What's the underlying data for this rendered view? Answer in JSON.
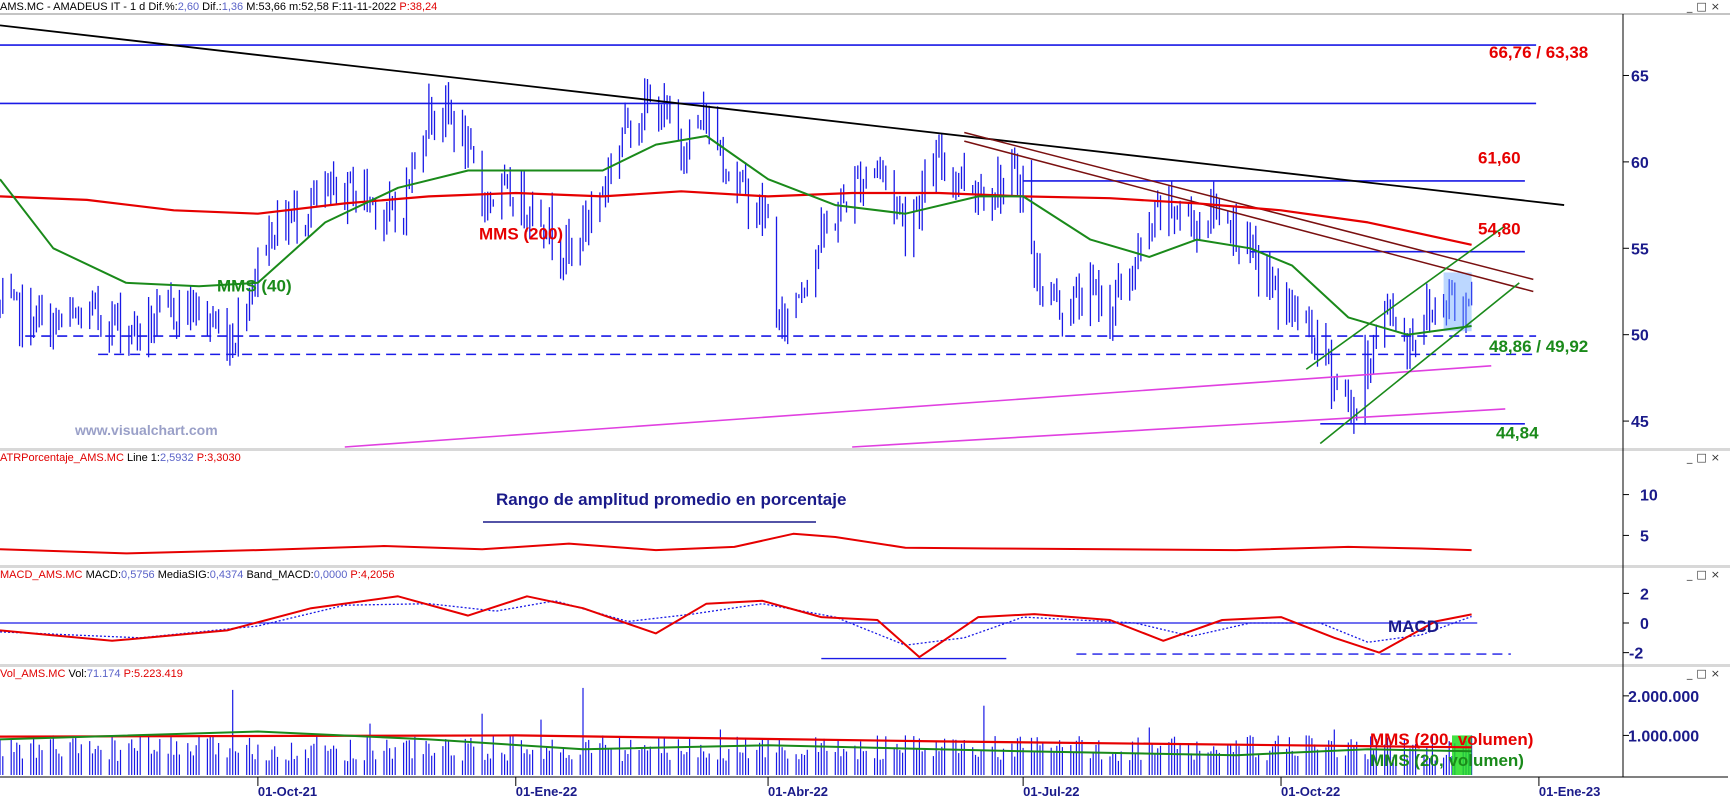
{
  "header": {
    "main": {
      "symbol": "AMS.MC - AMADEUS IT -",
      "period": "1 d",
      "dif_pct_label": "Dif.%:",
      "dif_pct": "2,60",
      "dif_label": "Dif.:",
      "dif": "1,36",
      "max_label": "M:",
      "max": "53,66",
      "min_label": "m:",
      "min": "52,58",
      "date_label": "F:",
      "date": "11-11-2022",
      "p_label": "P:",
      "p": "38,24"
    },
    "atr": {
      "name": "ATRPorcentaje_AMS.MC",
      "line_label": "Line 1:",
      "line": "2,5932",
      "p_label": "P:",
      "p": "3,3030"
    },
    "macd": {
      "name": "MACD_AMS.MC",
      "macd_label": "MACD:",
      "macd": "0,5756",
      "sig_label": "MediaSIG:",
      "sig": "0,4374",
      "band_label": "Band_MACD:",
      "band": "0,0000",
      "p_label": "P:",
      "p": "4,2056"
    },
    "vol": {
      "name": "Vol_AMS.MC",
      "vol_label": "Vol:",
      "vol": "71.174",
      "p_label": "P:",
      "p": "5.223.419"
    }
  },
  "window_buttons": "_□×",
  "colors": {
    "candles": "#1a1ae6",
    "mms200": "#e60000",
    "mms40": "#1a8a1a",
    "trend_black": "#000000",
    "trend_brown": "#7a1010",
    "levels": "#1a1ae6",
    "channel": "#1a8a1a",
    "support_magenta": "#e040e0",
    "atr": "#e60000",
    "macd": "#e60000",
    "signal": "#1a1ae6",
    "volume": "#1a1ae6",
    "label_red": "#e60000",
    "label_green": "#1a8a1a",
    "label_blue": "#1a1a8a"
  },
  "chart_data": [
    {
      "type": "candlestick",
      "panel": "price",
      "title": "AMS.MC - AMADEUS IT",
      "ylim": [
        43.5,
        68.5
      ],
      "y_ticks": [
        "45",
        "50",
        "55",
        "60",
        "65"
      ],
      "y_tick_values": [
        45,
        50,
        55,
        60,
        65
      ],
      "x_ticks": [
        "01-Oct-21",
        "01-Ene-22",
        "01-Abr-22",
        "01-Jul-22",
        "01-Oct-22",
        "01-Ene-23"
      ],
      "x_range": [
        "2021-07-01",
        "2023-01-31"
      ],
      "close_series": [
        [
          "2021-07-01",
          51.5
        ],
        [
          "2021-07-20",
          50.5
        ],
        [
          "2021-08-05",
          51.2
        ],
        [
          "2021-08-20",
          50.2
        ],
        [
          "2021-09-05",
          51.8
        ],
        [
          "2021-09-22",
          49.8
        ],
        [
          "2021-10-05",
          56.0
        ],
        [
          "2021-10-20",
          57.5
        ],
        [
          "2021-11-05",
          58.5
        ],
        [
          "2021-11-20",
          56.5
        ],
        [
          "2021-12-01",
          63.0
        ],
        [
          "2021-12-10",
          62.5
        ],
        [
          "2021-12-20",
          58.0
        ],
        [
          "2022-01-01",
          58.0
        ],
        [
          "2022-01-10",
          57.0
        ],
        [
          "2022-01-20",
          54.5
        ],
        [
          "2022-02-01",
          58.5
        ],
        [
          "2022-02-10",
          62.5
        ],
        [
          "2022-02-20",
          63.5
        ],
        [
          "2022-03-01",
          61.0
        ],
        [
          "2022-03-10",
          62.5
        ],
        [
          "2022-03-20",
          59.0
        ],
        [
          "2022-04-01",
          56.5
        ],
        [
          "2022-04-05",
          50.0
        ],
        [
          "2022-04-10",
          52.0
        ],
        [
          "2022-04-20",
          55.5
        ],
        [
          "2022-05-01",
          58.5
        ],
        [
          "2022-05-10",
          60.0
        ],
        [
          "2022-05-20",
          56.5
        ],
        [
          "2022-06-01",
          60.0
        ],
        [
          "2022-06-15",
          58.5
        ],
        [
          "2022-07-01",
          59.0
        ],
        [
          "2022-07-05",
          53.5
        ],
        [
          "2022-07-15",
          51.5
        ],
        [
          "2022-07-25",
          52.5
        ],
        [
          "2022-08-01",
          51.5
        ],
        [
          "2022-08-10",
          54.0
        ],
        [
          "2022-08-20",
          57.5
        ],
        [
          "2022-09-01",
          56.5
        ],
        [
          "2022-09-10",
          57.5
        ],
        [
          "2022-09-20",
          54.5
        ],
        [
          "2022-10-01",
          52.0
        ],
        [
          "2022-10-10",
          50.5
        ],
        [
          "2022-10-20",
          47.5
        ],
        [
          "2022-10-27",
          45.5
        ],
        [
          "2022-11-01",
          48.5
        ],
        [
          "2022-11-05",
          50.5
        ],
        [
          "2022-11-09",
          51.5
        ],
        [
          "2022-11-15",
          49.5
        ],
        [
          "2022-11-20",
          51.0
        ],
        [
          "2022-11-25",
          51.5
        ],
        [
          "2022-12-01",
          52.5
        ],
        [
          "2022-12-05",
          51.0
        ],
        [
          "2022-12-08",
          53.5
        ]
      ],
      "mms200": [
        [
          "2021-07-01",
          58.0
        ],
        [
          "2021-08-01",
          57.8
        ],
        [
          "2021-09-01",
          57.2
        ],
        [
          "2021-10-01",
          57.0
        ],
        [
          "2021-11-01",
          57.6
        ],
        [
          "2021-12-01",
          58.0
        ],
        [
          "2022-01-01",
          58.2
        ],
        [
          "2022-02-01",
          58.0
        ],
        [
          "2022-03-01",
          58.3
        ],
        [
          "2022-04-01",
          58.0
        ],
        [
          "2022-05-01",
          58.2
        ],
        [
          "2022-06-01",
          58.2
        ],
        [
          "2022-07-01",
          58.0
        ],
        [
          "2022-08-01",
          57.9
        ],
        [
          "2022-09-01",
          57.6
        ],
        [
          "2022-10-01",
          57.2
        ],
        [
          "2022-11-01",
          56.5
        ],
        [
          "2022-12-08",
          55.2
        ]
      ],
      "mms40": [
        [
          "2021-07-01",
          59.0
        ],
        [
          "2021-07-20",
          55.0
        ],
        [
          "2021-08-15",
          53.0
        ],
        [
          "2021-09-10",
          52.8
        ],
        [
          "2021-10-01",
          53.0
        ],
        [
          "2021-10-25",
          56.5
        ],
        [
          "2021-11-20",
          58.5
        ],
        [
          "2021-12-15",
          59.5
        ],
        [
          "2022-01-10",
          59.5
        ],
        [
          "2022-02-01",
          59.5
        ],
        [
          "2022-02-20",
          61.0
        ],
        [
          "2022-03-10",
          61.5
        ],
        [
          "2022-04-01",
          59.0
        ],
        [
          "2022-04-25",
          57.5
        ],
        [
          "2022-05-20",
          57.0
        ],
        [
          "2022-06-15",
          58.0
        ],
        [
          "2022-07-01",
          58.0
        ],
        [
          "2022-07-25",
          55.5
        ],
        [
          "2022-08-15",
          54.5
        ],
        [
          "2022-09-01",
          55.5
        ],
        [
          "2022-09-20",
          55.0
        ],
        [
          "2022-10-05",
          54.0
        ],
        [
          "2022-10-25",
          51.0
        ],
        [
          "2022-11-15",
          50.0
        ],
        [
          "2022-12-08",
          50.5
        ]
      ],
      "trendlines": [
        {
          "from": [
            "2021-07-01",
            67.9
          ],
          "to": [
            "2023-01-10",
            57.5
          ],
          "color": "trend_black"
        },
        {
          "from": [
            "2022-06-10",
            61.7
          ],
          "to": [
            "2022-12-30",
            53.2
          ],
          "color": "trend_brown"
        },
        {
          "from": [
            "2022-06-10",
            61.2
          ],
          "to": [
            "2022-12-30",
            52.5
          ],
          "color": "trend_brown"
        }
      ],
      "horizontal_levels": [
        {
          "y": 66.76,
          "from": "2021-07-01",
          "to": "2022-12-31",
          "style": "solid"
        },
        {
          "y": 63.38,
          "from": "2021-07-01",
          "to": "2022-12-31",
          "style": "solid"
        },
        {
          "y": 58.9,
          "from": "2022-07-01",
          "to": "2022-12-27",
          "style": "solid"
        },
        {
          "y": 54.8,
          "from": "2022-09-20",
          "to": "2022-12-27",
          "style": "solid"
        },
        {
          "y": 49.92,
          "from": "2021-07-10",
          "to": "2022-12-31",
          "style": "dashed"
        },
        {
          "y": 48.86,
          "from": "2021-08-05",
          "to": "2022-12-31",
          "style": "dashed"
        },
        {
          "y": 44.84,
          "from": "2022-10-15",
          "to": "2022-12-27",
          "style": "solid"
        }
      ],
      "channel_lines": [
        {
          "from": [
            "2022-10-10",
            48.0
          ],
          "to": [
            "2022-12-20",
            56.3
          ]
        },
        {
          "from": [
            "2022-10-15",
            43.7
          ],
          "to": [
            "2022-12-25",
            53.0
          ]
        }
      ],
      "support_lines": [
        {
          "from": [
            "2021-11-01",
            43.5
          ],
          "to": [
            "2022-12-15",
            48.2
          ]
        },
        {
          "from": [
            "2022-05-01",
            43.5
          ],
          "to": [
            "2022-12-20",
            45.7
          ]
        }
      ],
      "annotations": [
        {
          "text": "66,76 / 63,38",
          "color": "label_red"
        },
        {
          "text": "61,60",
          "color": "label_red"
        },
        {
          "text": "54,80",
          "color": "label_red"
        },
        {
          "text": "48,86 / 49,92",
          "color": "label_green"
        },
        {
          "text": "44,84",
          "color": "label_green"
        },
        {
          "text": "MMS (200)",
          "color": "label_red"
        },
        {
          "text": "MMS (40)",
          "color": "label_green"
        },
        {
          "text": "www.visualchart.com",
          "color": "watermark"
        }
      ]
    },
    {
      "type": "line",
      "panel": "atr",
      "ylim": [
        1.5,
        13.5
      ],
      "y_ticks": [
        "5",
        "10"
      ],
      "y_tick_values": [
        5,
        10
      ],
      "series": [
        {
          "values": [
            [
              "2021-07-01",
              3.3
            ],
            [
              "2021-08-15",
              2.8
            ],
            [
              "2021-10-01",
              3.2
            ],
            [
              "2021-11-15",
              3.7
            ],
            [
              "2021-12-20",
              3.3
            ],
            [
              "2022-01-20",
              4.0
            ],
            [
              "2022-02-20",
              3.2
            ],
            [
              "2022-03-20",
              3.6
            ],
            [
              "2022-04-10",
              5.2
            ],
            [
              "2022-04-25",
              4.8
            ],
            [
              "2022-05-20",
              3.5
            ],
            [
              "2022-06-20",
              3.4
            ],
            [
              "2022-08-01",
              3.3
            ],
            [
              "2022-09-15",
              3.2
            ],
            [
              "2022-10-25",
              3.6
            ],
            [
              "2022-11-20",
              3.4
            ],
            [
              "2022-12-08",
              3.2
            ]
          ]
        }
      ],
      "annotations": [
        {
          "text": "Rango de amplitud promedio en porcentaje",
          "color": "label_blue"
        }
      ]
    },
    {
      "type": "line",
      "panel": "macd",
      "ylim": [
        -2.7,
        2.7
      ],
      "y_ticks": [
        "-2",
        "0",
        "2"
      ],
      "y_tick_values": [
        -2,
        0,
        2
      ],
      "series": [
        {
          "values": [
            [
              "2021-07-01",
              -0.5
            ],
            [
              "2021-08-10",
              -1.2
            ],
            [
              "2021-09-20",
              -0.5
            ],
            [
              "2021-10-20",
              1.0
            ],
            [
              "2021-11-20",
              1.8
            ],
            [
              "2021-12-15",
              0.5
            ],
            [
              "2022-01-05",
              1.8
            ],
            [
              "2022-01-25",
              1.0
            ],
            [
              "2022-02-20",
              -0.7
            ],
            [
              "2022-03-10",
              1.3
            ],
            [
              "2022-03-30",
              1.5
            ],
            [
              "2022-04-20",
              0.4
            ],
            [
              "2022-05-10",
              0.2
            ],
            [
              "2022-05-25",
              -2.3
            ],
            [
              "2022-06-15",
              0.4
            ],
            [
              "2022-07-05",
              0.6
            ],
            [
              "2022-08-01",
              0.2
            ],
            [
              "2022-08-20",
              -1.2
            ],
            [
              "2022-09-10",
              0.2
            ],
            [
              "2022-10-01",
              0.4
            ],
            [
              "2022-10-20",
              -1.0
            ],
            [
              "2022-11-05",
              -2.0
            ],
            [
              "2022-11-25",
              0.1
            ],
            [
              "2022-12-08",
              0.58
            ]
          ]
        },
        {
          "values": [
            [
              "2021-07-01",
              -0.6
            ],
            [
              "2021-08-20",
              -1.0
            ],
            [
              "2021-10-01",
              -0.2
            ],
            [
              "2021-11-01",
              1.2
            ],
            [
              "2021-12-01",
              1.3
            ],
            [
              "2021-12-25",
              0.8
            ],
            [
              "2022-01-15",
              1.5
            ],
            [
              "2022-02-10",
              0.1
            ],
            [
              "2022-03-05",
              0.6
            ],
            [
              "2022-03-30",
              1.3
            ],
            [
              "2022-04-25",
              0.4
            ],
            [
              "2022-05-20",
              -1.5
            ],
            [
              "2022-06-10",
              -1.0
            ],
            [
              "2022-07-01",
              0.4
            ],
            [
              "2022-08-10",
              0.0
            ],
            [
              "2022-08-30",
              -0.9
            ],
            [
              "2022-09-20",
              0.0
            ],
            [
              "2022-10-15",
              0.0
            ],
            [
              "2022-11-01",
              -1.3
            ],
            [
              "2022-11-20",
              -0.8
            ],
            [
              "2022-12-08",
              0.44
            ]
          ]
        }
      ],
      "guides": [
        {
          "y": -2.4,
          "from": "2022-04-20",
          "to": "2022-06-25",
          "style": "solid"
        },
        {
          "y": -2.1,
          "from": "2022-07-20",
          "to": "2022-12-22",
          "style": "dashed"
        }
      ],
      "annotations": [
        {
          "text": "MACD",
          "color": "label_blue"
        }
      ]
    },
    {
      "type": "bar",
      "panel": "volume",
      "ylim": [
        0,
        2350000
      ],
      "y_ticks": [
        "1.000.000",
        "2.000.000"
      ],
      "y_tick_values": [
        1000000,
        2000000
      ],
      "series": [
        {
          "name": "MMS (200, volumen)",
          "values": [
            [
              "2021-07-01",
              970000
            ],
            [
              "2022-01-01",
              1000000
            ],
            [
              "2022-06-01",
              850000
            ],
            [
              "2022-12-08",
              700000
            ]
          ]
        },
        {
          "name": "MMS (20, volumen)",
          "values": [
            [
              "2021-07-01",
              900000
            ],
            [
              "2021-10-01",
              1100000
            ],
            [
              "2021-12-01",
              900000
            ],
            [
              "2022-01-25",
              650000
            ],
            [
              "2022-04-01",
              750000
            ],
            [
              "2022-07-01",
              600000
            ],
            [
              "2022-09-15",
              500000
            ],
            [
              "2022-11-01",
              650000
            ],
            [
              "2022-12-08",
              600000
            ]
          ]
        }
      ],
      "spikes": [
        [
          "2021-07-20",
          1000000
        ],
        [
          "2021-09-15",
          1000000
        ],
        [
          "2021-09-22",
          2150000
        ],
        [
          "2021-11-10",
          1300000
        ],
        [
          "2021-12-20",
          1550000
        ],
        [
          "2022-01-10",
          1400000
        ],
        [
          "2022-01-25",
          2200000
        ],
        [
          "2022-02-01",
          1000000
        ],
        [
          "2022-03-15",
          1150000
        ],
        [
          "2022-05-20",
          1000000
        ],
        [
          "2022-06-17",
          1750000
        ],
        [
          "2022-08-15",
          1200000
        ],
        [
          "2022-09-20",
          1000000
        ],
        [
          "2022-10-10",
          1000000
        ],
        [
          "2022-10-20",
          1150000
        ],
        [
          "2022-12-08",
          1000000
        ]
      ]
    }
  ]
}
